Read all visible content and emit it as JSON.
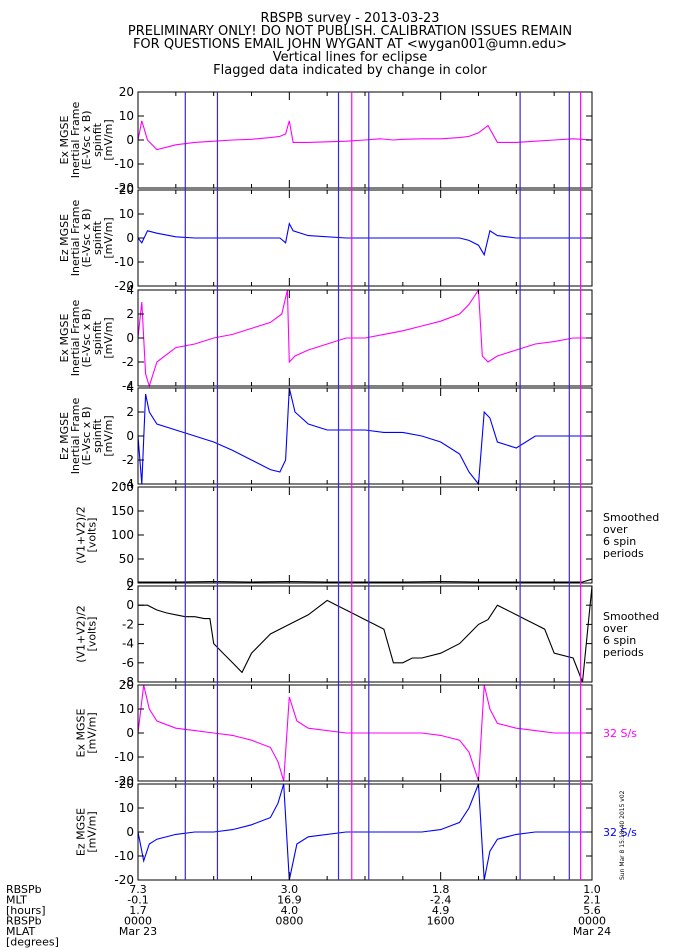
{
  "title_lines": [
    "RBSPB survey - 2013-03-23",
    "PRELIMINARY ONLY! DO NOT PUBLISH. CALIBRATION ISSUES REMAIN",
    "FOR QUESTIONS EMAIL JOHN WYGANT AT <wygan001@umn.edu>",
    "Vertical lines for eclipse",
    "Flagged data indicated by change in color"
  ],
  "colors": {
    "magenta": "#ff00ff",
    "blue": "#0000ff",
    "black": "#000000",
    "line_blue": "#3c28d2",
    "line_magenta": "#ff00ff"
  },
  "chart_data": [
    {
      "type": "line",
      "ylabel": "Ex MGSE\nInertial Frame\n(E-Vsc x B)\nspinfit\n[mV/m]",
      "ylim": [
        -20,
        20
      ],
      "yticks": [
        "20",
        "10",
        "0",
        "-10",
        "-20"
      ],
      "color": "#ff00ff",
      "series": [
        {
          "x_hours": [
            0,
            0.2,
            0.5,
            1.0,
            2.0,
            3.0,
            4.0,
            5.0,
            6.0,
            7.0,
            7.5,
            7.8,
            8.0,
            8.2,
            9,
            11,
            12,
            12.8,
            13.5,
            14,
            15,
            16,
            17,
            17.5,
            18,
            18.5,
            19,
            20,
            21,
            22,
            23,
            24
          ],
          "values": [
            0,
            8,
            0,
            -4,
            -2,
            -1,
            -0.5,
            0,
            0.3,
            1,
            1.5,
            2.5,
            8,
            -1,
            -1,
            -0.5,
            0,
            0.5,
            0,
            0.3,
            0.5,
            0.5,
            1,
            1.5,
            3,
            6,
            -1,
            -1,
            -0.5,
            0,
            0.5,
            0
          ]
        }
      ]
    },
    {
      "type": "line",
      "ylabel": "Ez MGSE\nInertial Frame\n(E-Vsc x B)\nspinfit\n[mV/m]",
      "ylim": [
        -20,
        20
      ],
      "yticks": [
        "20",
        "10",
        "0",
        "-10",
        "-20"
      ],
      "color": "#0000ff",
      "series": [
        {
          "x_hours": [
            0,
            0.2,
            0.5,
            1.0,
            2.0,
            3.0,
            4.0,
            5.0,
            6.0,
            7.0,
            7.5,
            7.8,
            8.0,
            8.2,
            9,
            11,
            12,
            13,
            14,
            15,
            16,
            17,
            17.5,
            18,
            18.3,
            18.6,
            19,
            20,
            21,
            22,
            23,
            24
          ],
          "values": [
            0,
            -2,
            3,
            2,
            0.5,
            0,
            0,
            0,
            0,
            0,
            0,
            -2,
            6,
            3,
            1,
            0,
            0,
            0,
            0,
            0,
            0,
            0,
            -1,
            -3,
            -7,
            3,
            1,
            0,
            0,
            0,
            0,
            0
          ]
        }
      ]
    },
    {
      "type": "line",
      "ylabel": "Ex MGSE\nInertial Frame\n(E-Vsc x B)\nspinfit\n[mV/m]",
      "ylim": [
        -4,
        4
      ],
      "yticks": [
        "4",
        "2",
        "0",
        "-2",
        "-4"
      ],
      "color": "#ff00ff",
      "series": [
        {
          "x_hours": [
            0,
            0.2,
            0.4,
            0.6,
            1.0,
            2.0,
            3.0,
            4.0,
            5.0,
            6.0,
            7.0,
            7.6,
            7.9,
            8.0,
            8.3,
            9,
            10,
            11,
            12,
            13,
            14,
            15,
            16,
            17,
            17.5,
            18,
            18.2,
            18.5,
            19,
            20,
            21,
            22,
            23,
            24
          ],
          "values": [
            0,
            3,
            -3,
            -4,
            -2,
            -0.8,
            -0.5,
            0,
            0.3,
            0.8,
            1.3,
            2,
            4,
            -2,
            -1.5,
            -1,
            -0.5,
            0,
            0,
            0.3,
            0.6,
            1,
            1.4,
            2,
            2.8,
            4,
            -1.5,
            -2,
            -1.5,
            -1,
            -0.5,
            -0.3,
            0,
            0
          ]
        }
      ]
    },
    {
      "type": "line",
      "ylabel": "Ez MGSE\nInertial Frame\n(E-Vsc x B)\nspinfit\n[mV/m]",
      "ylim": [
        -4,
        4
      ],
      "yticks": [
        "4",
        "2",
        "0",
        "-2",
        "-4"
      ],
      "color": "#0000ff",
      "series": [
        {
          "x_hours": [
            0,
            0.2,
            0.4,
            0.6,
            1.0,
            2.0,
            3.0,
            4.0,
            5.0,
            6.0,
            7.0,
            7.5,
            7.8,
            8.0,
            8.3,
            9,
            10,
            11,
            12,
            13,
            14,
            15,
            16,
            17,
            17.5,
            18,
            18.3,
            18.6,
            19,
            20,
            21,
            22,
            23,
            24
          ],
          "values": [
            0,
            -4,
            3.5,
            2,
            1,
            0.5,
            0,
            -0.5,
            -1.2,
            -2,
            -2.8,
            -3,
            -2,
            4,
            2,
            1,
            0.5,
            0.5,
            0.5,
            0.3,
            0.3,
            0,
            -0.5,
            -1.5,
            -3,
            -4,
            2,
            1.5,
            -0.5,
            -1,
            0,
            0,
            0,
            0
          ]
        }
      ]
    },
    {
      "type": "line",
      "ylabel": "(V1+V2)/2\n[volts]",
      "ylim": [
        0,
        200
      ],
      "yticks": [
        "200",
        "150",
        "100",
        "50",
        "0"
      ],
      "color": "#000000",
      "note": "Smoothed\nover\n6 spin\nperiods",
      "series": [
        {
          "x_hours": [
            0,
            2,
            4,
            6,
            8,
            10,
            12,
            14,
            16,
            18,
            20,
            22,
            23.5,
            24
          ],
          "values": [
            2,
            2,
            3,
            2,
            3,
            2,
            2,
            2,
            3,
            2,
            2,
            2,
            2,
            8
          ]
        }
      ]
    },
    {
      "type": "line",
      "ylabel": "(V1+V2)/2\n[volts]",
      "ylim": [
        -8,
        2
      ],
      "yticks": [
        "2",
        "0",
        "-2",
        "-4",
        "-6",
        "-8"
      ],
      "color": "#000000",
      "note": "Smoothed\nover\n6 spin\nperiods",
      "series": [
        {
          "x_hours": [
            0,
            0.5,
            1,
            1.5,
            2,
            2.5,
            3,
            3.5,
            3.8,
            4.0,
            4.5,
            5,
            5.5,
            6,
            7,
            8,
            9,
            10,
            10.5,
            11,
            11.5,
            12,
            12.5,
            13,
            13.5,
            14,
            14.5,
            15,
            16,
            17,
            18,
            18.5,
            19,
            19.5,
            20,
            20.5,
            21,
            21.5,
            22,
            23,
            23.5,
            24
          ],
          "values": [
            0,
            0,
            -0.5,
            -0.8,
            -1,
            -1.2,
            -1.2,
            -1.4,
            -1.4,
            -4,
            -5,
            -6,
            -7,
            -5,
            -3,
            -2,
            -1,
            0.5,
            0,
            -0.5,
            -1,
            -1.5,
            -2,
            -2.5,
            -6,
            -6,
            -5.5,
            -5.5,
            -5,
            -4,
            -2,
            -1.5,
            0,
            -0.5,
            -1,
            -1.5,
            -2,
            -2.5,
            -5,
            -5.5,
            -8,
            2
          ]
        }
      ]
    },
    {
      "type": "line",
      "ylabel": "Ex MGSE\n[mV/m]",
      "ylim": [
        -20,
        20
      ],
      "yticks": [
        "20",
        "10",
        "0",
        "-10",
        "-20"
      ],
      "color": "#ff00ff",
      "note": "32 S/s",
      "series": [
        {
          "x_hours": [
            0,
            0.3,
            0.6,
            1.0,
            2.0,
            3.0,
            4.0,
            5.0,
            6.0,
            7.0,
            7.4,
            7.7,
            8.0,
            8.4,
            9,
            11,
            12,
            13,
            14,
            15,
            16,
            17,
            17.5,
            18,
            18.3,
            18.6,
            19,
            20,
            21,
            22,
            23,
            24
          ],
          "values": [
            0,
            20,
            10,
            5,
            2,
            1,
            0,
            -1,
            -3,
            -6,
            -12,
            -20,
            15,
            5,
            2,
            0,
            0,
            0,
            0,
            0,
            -1,
            -3,
            -8,
            -20,
            20,
            10,
            4,
            2,
            1,
            0,
            0,
            0
          ]
        }
      ]
    },
    {
      "type": "line",
      "ylabel": "Ez MGSE\n[mV/m]",
      "ylim": [
        -20,
        20
      ],
      "yticks": [
        "20",
        "10",
        "0",
        "-10",
        "-20"
      ],
      "color": "#0000ff",
      "note": "32 S/s",
      "series": [
        {
          "x_hours": [
            0,
            0.3,
            0.6,
            1.0,
            2.0,
            3.0,
            4.0,
            5.0,
            6.0,
            7.0,
            7.4,
            7.7,
            8.0,
            8.4,
            9,
            11,
            12,
            13,
            14,
            15,
            16,
            17,
            17.5,
            18,
            18.3,
            18.6,
            19,
            20,
            21,
            22,
            23,
            24
          ],
          "values": [
            0,
            -12,
            -5,
            -3,
            -1,
            0,
            0,
            1,
            3,
            6,
            12,
            20,
            -20,
            -5,
            -2,
            0,
            0,
            0,
            0,
            0,
            1,
            4,
            10,
            20,
            -20,
            -8,
            -3,
            -1,
            0,
            0,
            0,
            0
          ]
        }
      ]
    }
  ],
  "eclipse_lines": {
    "blue_hours": [
      2.5,
      4.2,
      10.6,
      12.2,
      20.2,
      22.8
    ],
    "magenta_hours": [
      11.3,
      23.4
    ]
  },
  "x_axis": {
    "range_hours": [
      0,
      24
    ],
    "tick_hours": [
      0,
      8,
      16,
      24
    ],
    "row_labels": [
      "RBSPb\nMLT\n[hours]",
      "RBSPb\nMLAT\n[degrees]"
    ],
    "columns": [
      {
        "lines": [
          "7.3",
          "-0.1",
          "1.7",
          "0000",
          "Mar 23"
        ]
      },
      {
        "lines": [
          "3.0",
          "16.9",
          "4.0",
          "0800",
          ""
        ]
      },
      {
        "lines": [
          "1.8",
          "-2.4",
          "4.9",
          "1600",
          ""
        ]
      },
      {
        "lines": [
          "1.0",
          "2.1",
          "5.6",
          "0000",
          "Mar 24"
        ]
      }
    ]
  },
  "stamp": "Sun Mar 8 15:18:40 2015 v02"
}
